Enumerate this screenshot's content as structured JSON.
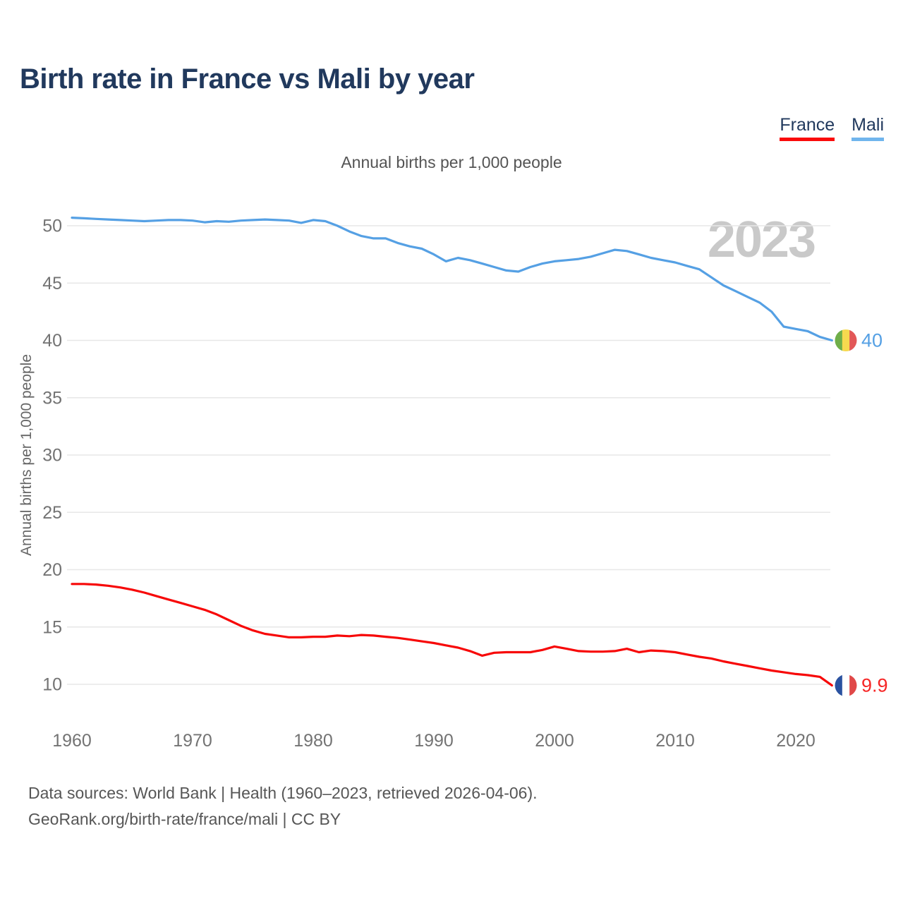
{
  "header": {
    "title": "Birth rate in France vs Mali by year"
  },
  "legend": [
    {
      "label": "France",
      "underline": "#fa0a0a"
    },
    {
      "label": "Mali",
      "underline": "#70b5ed"
    }
  ],
  "subtitle": "Annual births per 1,000 people",
  "footer": {
    "line1": "Data sources: World Bank | Health (1960–2023, retrieved 2026-04-06).",
    "line2": "GeoRank.org/birth-rate/france/mali | CC BY"
  },
  "chart_data": {
    "type": "line",
    "title": "Annual births per 1,000 people",
    "ylabel": "Annual births per 1,000 people",
    "xlabel": "",
    "watermark": "2023",
    "grid": true,
    "legend_position": "top-right",
    "xlim": [
      1960,
      2023
    ],
    "ylim": [
      10,
      50
    ],
    "x_ticks": [
      1960,
      1970,
      1980,
      1990,
      2000,
      2010,
      2020
    ],
    "y_ticks": [
      10,
      15,
      20,
      25,
      30,
      35,
      40,
      45,
      50
    ],
    "x": [
      1960,
      1961,
      1962,
      1963,
      1964,
      1965,
      1966,
      1967,
      1968,
      1969,
      1970,
      1971,
      1972,
      1973,
      1974,
      1975,
      1976,
      1977,
      1978,
      1979,
      1980,
      1981,
      1982,
      1983,
      1984,
      1985,
      1986,
      1987,
      1988,
      1989,
      1990,
      1991,
      1992,
      1993,
      1994,
      1995,
      1996,
      1997,
      1998,
      1999,
      2000,
      2001,
      2002,
      2003,
      2004,
      2005,
      2006,
      2007,
      2008,
      2009,
      2010,
      2011,
      2012,
      2013,
      2014,
      2015,
      2016,
      2017,
      2018,
      2019,
      2020,
      2021,
      2022,
      2023
    ],
    "series": [
      {
        "name": "Mali",
        "color": "#55a0e4",
        "label_color": "#55a0e4",
        "end_label": "40",
        "flag": [
          "#6fae49",
          "#f6d94f",
          "#e25757"
        ],
        "values": [
          50.7,
          50.65,
          50.6,
          50.55,
          50.5,
          50.45,
          50.4,
          50.45,
          50.5,
          50.5,
          50.45,
          50.3,
          50.4,
          50.35,
          50.45,
          50.5,
          50.55,
          50.5,
          50.45,
          50.25,
          50.5,
          50.4,
          50.0,
          49.5,
          49.1,
          48.9,
          48.9,
          48.5,
          48.2,
          48.0,
          47.5,
          46.9,
          47.2,
          47.0,
          46.7,
          46.4,
          46.1,
          46.0,
          46.4,
          46.7,
          46.9,
          47.0,
          47.1,
          47.3,
          47.6,
          47.9,
          47.8,
          47.5,
          47.2,
          47.0,
          46.8,
          46.5,
          46.2,
          45.5,
          44.8,
          44.3,
          43.8,
          43.3,
          42.5,
          41.2,
          41.0,
          40.8,
          40.3,
          40.0
        ]
      },
      {
        "name": "France",
        "color": "#f70808",
        "label_color": "#f62626",
        "end_label": "9.9",
        "flag": [
          "#2a52a0",
          "#ffffff",
          "#e04848"
        ],
        "values": [
          18.75,
          18.75,
          18.7,
          18.6,
          18.45,
          18.25,
          18.0,
          17.7,
          17.4,
          17.1,
          16.8,
          16.5,
          16.1,
          15.6,
          15.1,
          14.7,
          14.4,
          14.25,
          14.1,
          14.1,
          14.15,
          14.15,
          14.25,
          14.2,
          14.3,
          14.25,
          14.15,
          14.05,
          13.9,
          13.75,
          13.6,
          13.4,
          13.2,
          12.9,
          12.5,
          12.75,
          12.8,
          12.8,
          12.8,
          13.0,
          13.3,
          13.1,
          12.9,
          12.85,
          12.85,
          12.9,
          13.1,
          12.8,
          12.95,
          12.9,
          12.8,
          12.6,
          12.4,
          12.25,
          12.0,
          11.8,
          11.6,
          11.4,
          11.2,
          11.05,
          10.9,
          10.8,
          10.65,
          9.9
        ]
      }
    ]
  }
}
